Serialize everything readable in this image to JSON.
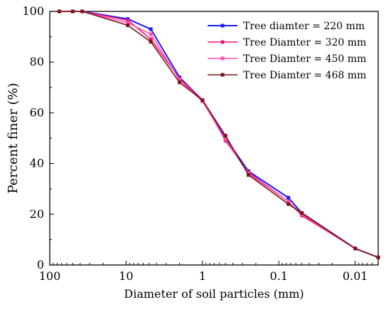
{
  "chart_data": {
    "type": "line",
    "title": "",
    "xlabel": "Diameter of soil particles (mm)",
    "ylabel": "Percent finer (%)",
    "xscale": "log",
    "x_reversed": true,
    "xlim": [
      100,
      0.005
    ],
    "ylim": [
      0,
      100
    ],
    "x_ticks": [
      100,
      10,
      1,
      0.1,
      0.01
    ],
    "x_tick_labels": [
      "100",
      "10",
      "1",
      "0.1",
      "0.01"
    ],
    "y_ticks": [
      0,
      20,
      40,
      60,
      80,
      100
    ],
    "y_tick_labels": [
      "0",
      "20",
      "40",
      "60",
      "80",
      "100"
    ],
    "grid": false,
    "legend_position": "top-right",
    "series": [
      {
        "name": "Tree diamter = 220 mm",
        "color": "#1a1aff",
        "marker": "square",
        "x": [
          75,
          50,
          37.5,
          9.5,
          4.75,
          2,
          1,
          0.5,
          0.25,
          0.075,
          0.05,
          0.01,
          0.005
        ],
        "y": [
          100,
          100,
          100,
          97,
          93,
          74,
          65,
          50,
          37,
          26.5,
          20.5,
          6.5,
          3
        ]
      },
      {
        "name": "Tree Diamter = 320 mm",
        "color": "#ee1177",
        "marker": "circle",
        "x": [
          75,
          50,
          37.5,
          9.5,
          4.75,
          2,
          1,
          0.5,
          0.25,
          0.075,
          0.05,
          0.01,
          0.005
        ],
        "y": [
          100,
          100,
          100,
          96.5,
          89,
          73.5,
          65,
          49,
          36.5,
          25,
          19.5,
          6.5,
          3
        ]
      },
      {
        "name": "Tree Diamter = 450 mm",
        "color": "#ff4fb0",
        "marker": "square",
        "x": [
          75,
          50,
          37.5,
          9.5,
          4.75,
          2,
          1,
          0.5,
          0.25,
          0.075,
          0.05,
          0.01,
          0.005
        ],
        "y": [
          100,
          100,
          100,
          95.5,
          91,
          73,
          64.5,
          49.5,
          36,
          25,
          20,
          6.5,
          3
        ]
      },
      {
        "name": "Tree Diamter = 468 mm",
        "color": "#7a1414",
        "marker": "square",
        "x": [
          75,
          50,
          37.5,
          9.5,
          4.75,
          2,
          1,
          0.5,
          0.25,
          0.075,
          0.05,
          0.01,
          0.005
        ],
        "y": [
          100,
          100,
          100,
          94.5,
          88,
          72,
          65,
          51,
          35.5,
          24,
          20.5,
          6.5,
          3
        ]
      }
    ]
  }
}
